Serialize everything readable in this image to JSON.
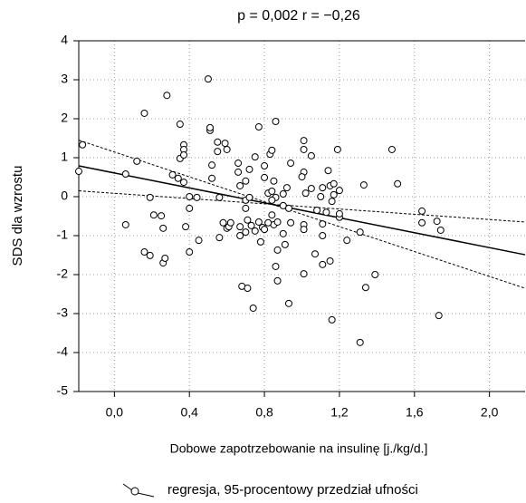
{
  "chart_data": {
    "type": "scatter",
    "title": "p = 0,002  r = −0,26",
    "x_label": "Dobowe zapotrzebowanie na insulinę [j./kg/d.]",
    "y_label": "SDS dla wzrostu",
    "legend": "regresja,  95-procentowy przedział ufności",
    "color": "#000000",
    "grid": true,
    "xlim": [
      -0.19,
      2.19
    ],
    "ylim": [
      -5,
      4
    ],
    "xticks": [
      {
        "value": 0,
        "label": "0,0"
      },
      {
        "value": 0.4,
        "label": "0,4"
      },
      {
        "value": 0.8,
        "label": "0,8"
      },
      {
        "value": 1.2,
        "label": "1,2"
      },
      {
        "value": 1.6,
        "label": "1,6"
      },
      {
        "value": 2.0,
        "label": "2,0"
      }
    ],
    "yticks": [
      4,
      3,
      2,
      1,
      0,
      -1,
      -2,
      -3,
      -4,
      -5
    ],
    "x": [
      -0.17,
      -0.19,
      0.06,
      0.06,
      0.12,
      0.16,
      0.19,
      0.16,
      0.19,
      0.21,
      0.25,
      0.26,
      0.26,
      0.27,
      0.28,
      0.31,
      0.35,
      0.35,
      0.37,
      0.37,
      0.37,
      0.38,
      0.34,
      0.37,
      0.4,
      0.4,
      0.4,
      0.44,
      0.45,
      0.5,
      0.52,
      0.52,
      0.51,
      0.51,
      0.55,
      0.55,
      0.59,
      0.56,
      0.56,
      0.6,
      0.58,
      0.61,
      0.62,
      0.6,
      0.66,
      0.66,
      0.67,
      0.7,
      0.7,
      0.7,
      0.72,
      0.72,
      0.75,
      0.71,
      0.7,
      0.77,
      0.75,
      0.77,
      0.73,
      0.67,
      0.67,
      0.68,
      0.71,
      0.74,
      0.79,
      0.78,
      0.8,
      0.8,
      0.8,
      0.83,
      0.84,
      0.85,
      0.82,
      0.84,
      0.86,
      0.84,
      0.86,
      0.84,
      0.85,
      0.82,
      0.87,
      0.87,
      0.86,
      0.87,
      0.9,
      0.91,
      0.9,
      0.9,
      0.92,
      0.94,
      0.94,
      0.93,
      0.93,
      1.01,
      1.01,
      1.01,
      1.0,
      1.02,
      1.01,
      1.01,
      1.01,
      1.05,
      1.05,
      1.08,
      1.07,
      1.1,
      1.11,
      1.11,
      1.11,
      1.11,
      1.13,
      1.14,
      1.15,
      1.16,
      1.15,
      1.16,
      1.17,
      1.19,
      1.2,
      1.2,
      1.24,
      1.17,
      1.2,
      1.31,
      1.33,
      1.34,
      1.31,
      1.39,
      1.48,
      1.51,
      1.64,
      1.64,
      1.72,
      1.74,
      1.73
    ],
    "y": [
      1.33,
      0.65,
      -0.72,
      0.58,
      0.91,
      2.14,
      -0.02,
      -1.42,
      -1.51,
      -0.47,
      -0.49,
      -0.81,
      -1.7,
      -1.58,
      2.6,
      0.56,
      1.86,
      0.98,
      1.33,
      1.21,
      1.07,
      -0.77,
      0.47,
      0.37,
      0.0,
      -0.3,
      -1.42,
      -0.02,
      -1.12,
      3.02,
      0.81,
      0.47,
      1.7,
      1.77,
      1.16,
      1.4,
      1.37,
      -0.02,
      -1.05,
      -0.81,
      -0.67,
      -0.77,
      -0.67,
      1.21,
      0.86,
      0.63,
      0.28,
      0.4,
      -0.09,
      -0.3,
      -0.02,
      0.7,
      1.02,
      -0.6,
      -0.91,
      1.79,
      -0.88,
      -0.65,
      -0.74,
      -0.77,
      -1.0,
      -2.3,
      -2.35,
      -2.86,
      -0.79,
      -1.16,
      -0.84,
      0.79,
      0.49,
      1.09,
      1.19,
      0.4,
      0.09,
      0.14,
      -0.02,
      -0.09,
      1.93,
      -0.47,
      -0.72,
      -0.67,
      -0.65,
      -1.37,
      -1.79,
      -2.16,
      -0.95,
      -1.23,
      0.07,
      -0.23,
      0.23,
      0.86,
      -0.67,
      -2.74,
      -0.3,
      1.44,
      1.21,
      0.63,
      0.51,
      0.09,
      -0.72,
      -0.84,
      -1.98,
      1.05,
      0.21,
      -0.35,
      -1.47,
      0.0,
      -0.7,
      -1.0,
      -1.74,
      0.23,
      -0.4,
      0.67,
      0.28,
      -0.12,
      -1.65,
      -3.16,
      0.05,
      1.21,
      -0.53,
      0.16,
      -1.12,
      0.33,
      -0.44,
      -0.91,
      0.3,
      -2.33,
      -3.74,
      -2.0,
      1.21,
      0.33,
      -0.37,
      -0.67,
      -0.63,
      -0.86,
      -3.05
    ],
    "lines": [
      {
        "x": [
          -0.19,
          2.19
        ],
        "values": [
          0.79,
          -1.49
        ],
        "dash": false
      },
      {
        "x": [
          -0.19,
          2.19
        ],
        "values": [
          1.45,
          -2.35
        ],
        "dash": true
      },
      {
        "x": [
          -0.19,
          2.19
        ],
        "values": [
          0.15,
          -0.65
        ],
        "dash": true
      }
    ]
  }
}
